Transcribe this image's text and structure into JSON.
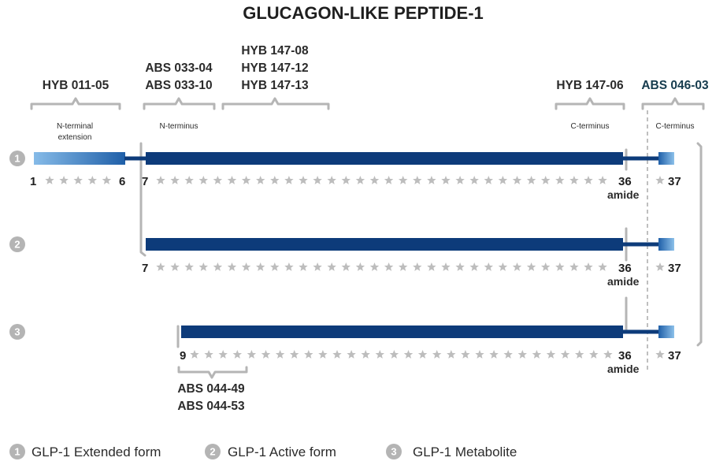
{
  "title": "GLUCAGON-LIKE PEPTIDE-1",
  "antibodies": {
    "hyb_011_05": "HYB 011-05",
    "abs_033": [
      "ABS 033-04",
      "ABS 033-10"
    ],
    "hyb_147": [
      "HYB 147-08",
      "HYB 147-12",
      "HYB 147-13"
    ],
    "hyb_147_06": "HYB 147-06",
    "abs_046_03": "ABS 046-03",
    "abs_044": [
      "ABS 044-49",
      "ABS 044-53"
    ]
  },
  "region_labels": {
    "n_terminal_extension": [
      "N-terminal",
      "extension"
    ],
    "n_terminus": "N-terminus",
    "c_terminus_left": "C-terminus",
    "c_terminus_right": "C-terminus"
  },
  "rows": [
    {
      "marker": "1",
      "start": "1",
      "mid": "6",
      "seq_start": "7",
      "seq_end": "36",
      "amide": "amide",
      "tail": "37"
    },
    {
      "marker": "2",
      "seq_start": "7",
      "seq_end": "36",
      "amide": "amide",
      "tail": "37"
    },
    {
      "marker": "3",
      "seq_start": "9",
      "seq_end": "36",
      "amide": "amide",
      "tail": "37"
    }
  ],
  "legend": [
    {
      "marker": "1",
      "label": "GLP-1 Extended form"
    },
    {
      "marker": "2",
      "label": "GLP-1 Active form"
    },
    {
      "marker": "3",
      "label": "GLP-1 Metabolite"
    }
  ],
  "colors": {
    "bar": "#0d3b7a",
    "extension_light": "#7fb6e6",
    "bracket": "#b5b5b5",
    "star": "#bdbdbd",
    "accent_text": "#163c4e"
  }
}
